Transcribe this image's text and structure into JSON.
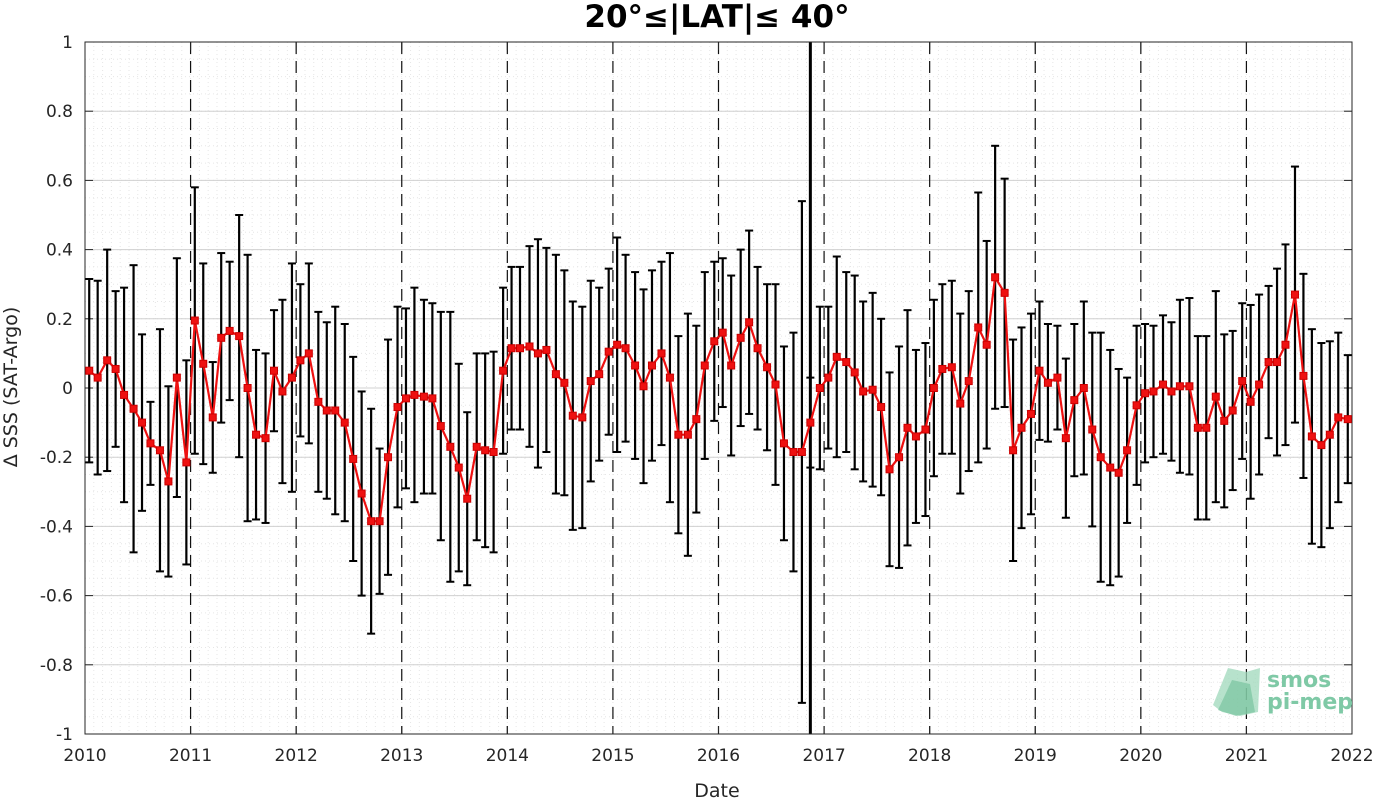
{
  "chart_data": {
    "type": "line",
    "title": "20°≤|LAT|≤ 40°",
    "xlabel": "Date",
    "ylabel": "Δ SSS (SAT-Argo)",
    "xlim": [
      2010,
      2022
    ],
    "ylim": [
      -1,
      1
    ],
    "x_ticks": [
      "2010",
      "2011",
      "2012",
      "2013",
      "2014",
      "2015",
      "2016",
      "2017",
      "2018",
      "2019",
      "2020",
      "2021",
      "2022"
    ],
    "y_ticks": [
      "1",
      "0.8",
      "0.6",
      "0.4",
      "0.2",
      "0",
      "-0.2",
      "-0.4",
      "-0.6",
      "-0.8",
      "-1"
    ],
    "grid": true,
    "minor_grid": true,
    "year_markers": "dashed vertical lines at each year",
    "event_marker": {
      "date": "2016.87",
      "style": "solid vertical line"
    },
    "colors": {
      "series": "#ee1111",
      "errorbar": "#000000",
      "grid": "#dcdcdc",
      "logo": "#7fc9a6"
    },
    "series": [
      {
        "marker": "square",
        "errorbars": true,
        "x": [
          2010.04,
          2010.12,
          2010.21,
          2010.29,
          2010.37,
          2010.46,
          2010.54,
          2010.62,
          2010.71,
          2010.79,
          2010.87,
          2010.96,
          2011.04,
          2011.12,
          2011.21,
          2011.29,
          2011.37,
          2011.46,
          2011.54,
          2011.62,
          2011.71,
          2011.79,
          2011.87,
          2011.96,
          2012.04,
          2012.12,
          2012.21,
          2012.29,
          2012.37,
          2012.46,
          2012.54,
          2012.62,
          2012.71,
          2012.79,
          2012.87,
          2012.96,
          2013.04,
          2013.12,
          2013.21,
          2013.29,
          2013.37,
          2013.46,
          2013.54,
          2013.62,
          2013.71,
          2013.79,
          2013.87,
          2013.96,
          2014.04,
          2014.12,
          2014.21,
          2014.29,
          2014.37,
          2014.46,
          2014.54,
          2014.62,
          2014.71,
          2014.79,
          2014.87,
          2014.96,
          2015.04,
          2015.12,
          2015.21,
          2015.29,
          2015.37,
          2015.46,
          2015.54,
          2015.62,
          2015.71,
          2015.79,
          2015.87,
          2015.96,
          2016.04,
          2016.12,
          2016.21,
          2016.29,
          2016.37,
          2016.46,
          2016.54,
          2016.62,
          2016.71,
          2016.79,
          2016.87,
          2016.96,
          2017.04,
          2017.12,
          2017.21,
          2017.29,
          2017.37,
          2017.46,
          2017.54,
          2017.62,
          2017.71,
          2017.79,
          2017.87,
          2017.96,
          2018.04,
          2018.12,
          2018.21,
          2018.29,
          2018.37,
          2018.46,
          2018.54,
          2018.62,
          2018.71,
          2018.79,
          2018.87,
          2018.96,
          2019.04,
          2019.12,
          2019.21,
          2019.29,
          2019.37,
          2019.46,
          2019.54,
          2019.62,
          2019.71,
          2019.79,
          2019.87,
          2019.96,
          2020.04,
          2020.12,
          2020.21,
          2020.29,
          2020.37,
          2020.46,
          2020.54,
          2020.62,
          2020.71,
          2020.79,
          2020.87,
          2020.96,
          2021.04,
          2021.12,
          2021.21,
          2021.29,
          2021.37,
          2021.46,
          2021.54,
          2021.62,
          2021.71,
          2021.79,
          2021.87,
          2021.96
        ],
        "y": [
          0.05,
          0.03,
          0.08,
          0.055,
          -0.02,
          -0.06,
          -0.1,
          -0.16,
          -0.18,
          -0.27,
          0.03,
          -0.215,
          0.195,
          0.07,
          -0.085,
          0.145,
          0.165,
          0.15,
          0.0,
          -0.135,
          -0.145,
          0.05,
          -0.01,
          0.03,
          0.08,
          0.1,
          -0.04,
          -0.065,
          -0.065,
          -0.1,
          -0.205,
          -0.305,
          -0.385,
          -0.385,
          -0.2,
          -0.055,
          -0.03,
          -0.02,
          -0.025,
          -0.03,
          -0.11,
          -0.17,
          -0.23,
          -0.32,
          -0.17,
          -0.18,
          -0.185,
          0.05,
          0.115,
          0.115,
          0.12,
          0.1,
          0.11,
          0.04,
          0.015,
          -0.08,
          -0.085,
          0.02,
          0.04,
          0.105,
          0.125,
          0.115,
          0.065,
          0.005,
          0.065,
          0.1,
          0.03,
          -0.135,
          -0.135,
          -0.09,
          0.065,
          0.135,
          0.16,
          0.065,
          0.145,
          0.19,
          0.115,
          0.06,
          0.01,
          -0.16,
          -0.185,
          -0.185,
          -0.1,
          0.0,
          0.03,
          0.09,
          0.075,
          0.045,
          -0.01,
          -0.005,
          -0.055,
          -0.235,
          -0.2,
          -0.115,
          -0.14,
          -0.12,
          0.0,
          0.055,
          0.06,
          -0.045,
          0.02,
          0.175,
          0.125,
          0.32,
          0.275,
          -0.18,
          -0.115,
          -0.075,
          0.05,
          0.015,
          0.03,
          -0.145,
          -0.035,
          0.0,
          -0.12,
          -0.2,
          -0.23,
          -0.245,
          -0.18,
          -0.05,
          -0.015,
          -0.01,
          0.01,
          -0.01,
          0.005,
          0.005,
          -0.115,
          -0.115,
          -0.025,
          -0.095,
          -0.065,
          0.02,
          -0.04,
          0.01,
          0.075,
          0.075,
          0.125,
          0.27,
          0.035,
          -0.14,
          -0.165,
          -0.135,
          -0.085,
          -0.09
        ],
        "err": [
          0.265,
          0.28,
          0.32,
          0.225,
          0.31,
          0.415,
          0.255,
          0.12,
          0.35,
          0.275,
          0.345,
          0.295,
          0.385,
          0.29,
          0.16,
          0.245,
          0.2,
          0.35,
          0.385,
          0.245,
          0.245,
          0.175,
          0.265,
          0.33,
          0.22,
          0.26,
          0.26,
          0.255,
          0.3,
          0.285,
          0.295,
          0.295,
          0.325,
          0.21,
          0.34,
          0.29,
          0.26,
          0.31,
          0.28,
          0.275,
          0.33,
          0.39,
          0.3,
          0.25,
          0.27,
          0.28,
          0.29,
          0.24,
          0.235,
          0.235,
          0.29,
          0.33,
          0.295,
          0.345,
          0.325,
          0.33,
          0.32,
          0.29,
          0.25,
          0.24,
          0.31,
          0.27,
          0.27,
          0.28,
          0.275,
          0.265,
          0.36,
          0.285,
          0.35,
          0.27,
          0.27,
          0.23,
          0.215,
          0.26,
          0.255,
          0.265,
          0.235,
          0.24,
          0.29,
          0.28,
          0.345,
          0.725,
          0.13,
          0.235,
          0.205,
          0.29,
          0.26,
          0.28,
          0.26,
          0.28,
          0.255,
          0.28,
          0.32,
          0.34,
          0.25,
          0.25,
          0.255,
          0.245,
          0.25,
          0.26,
          0.26,
          0.39,
          0.3,
          0.38,
          0.33,
          0.32,
          0.29,
          0.29,
          0.2,
          0.17,
          0.15,
          0.23,
          0.22,
          0.25,
          0.28,
          0.36,
          0.34,
          0.3,
          0.21,
          0.23,
          0.2,
          0.19,
          0.2,
          0.2,
          0.25,
          0.255,
          0.265,
          0.265,
          0.305,
          0.25,
          0.23,
          0.225,
          0.28,
          0.26,
          0.22,
          0.27,
          0.29,
          0.37,
          0.295,
          0.31,
          0.295,
          0.27,
          0.245,
          0.185
        ]
      }
    ]
  },
  "logo": {
    "line1": "smos",
    "line2": "pi-mep"
  }
}
